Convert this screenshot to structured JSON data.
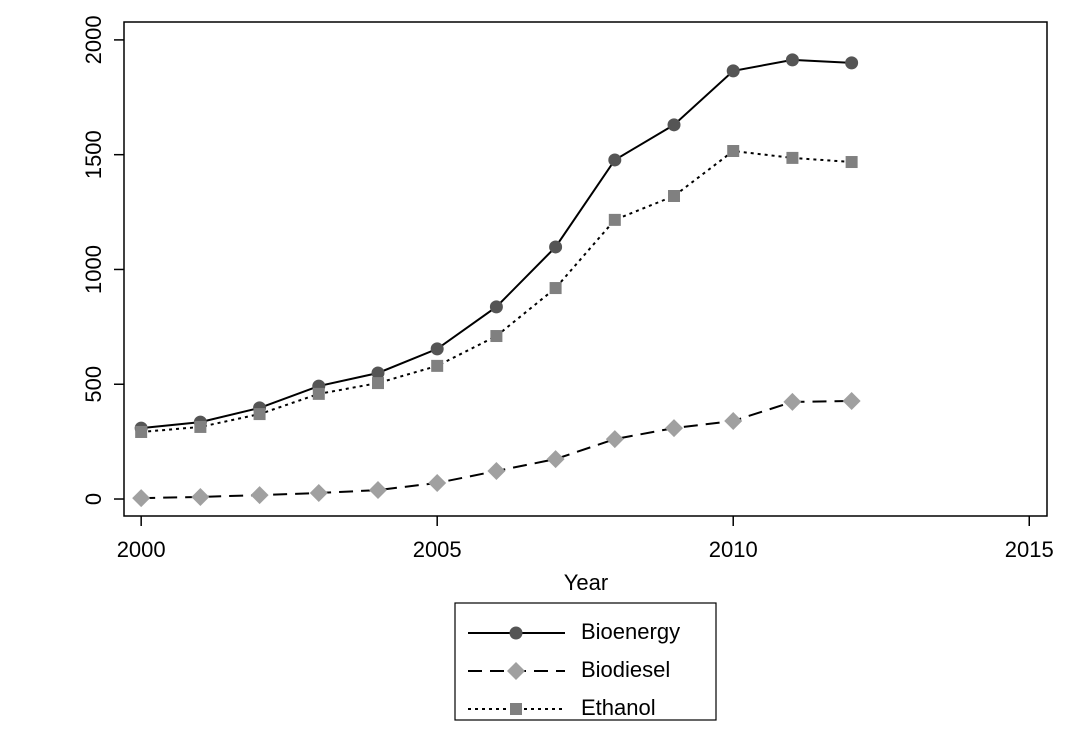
{
  "chart_data": {
    "type": "line",
    "xlabel": "Year",
    "x": [
      2000,
      2001,
      2002,
      2003,
      2004,
      2005,
      2006,
      2007,
      2008,
      2009,
      2010,
      2011,
      2012
    ],
    "series": [
      {
        "name": "Bioenergy",
        "color": "#555555",
        "marker": "circle",
        "dash": "solid",
        "values": [
          309,
          335,
          397,
          492,
          549,
          654,
          837,
          1098,
          1477,
          1630,
          1865,
          1913,
          1900
        ]
      },
      {
        "name": "Biodiesel",
        "color": "#a0a0a0",
        "marker": "diamond",
        "dash": "dashed",
        "values": [
          4,
          9,
          17,
          26,
          39,
          70,
          122,
          174,
          261,
          309,
          340,
          423,
          427
        ]
      },
      {
        "name": "Ethanol",
        "color": "#808080",
        "marker": "square",
        "dash": "dotted",
        "values": [
          292,
          314,
          370,
          458,
          505,
          580,
          710,
          919,
          1216,
          1320,
          1516,
          1486,
          1468
        ]
      }
    ],
    "xlim": [
      1999.71,
      2015.3
    ],
    "ylim": [
      -74,
      2078
    ],
    "xticks": [
      2000,
      2005,
      2010,
      2015
    ],
    "yticks": [
      0,
      500,
      1000,
      1500,
      2000
    ],
    "grid": false
  }
}
